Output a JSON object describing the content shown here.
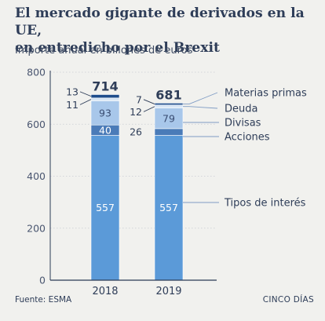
{
  "header": {
    "title_line1": "El mercado gigante de derivados en la UE,",
    "title_line2": "en entredicho por el Brexit",
    "subtitle": "Importe anual en billones de euros"
  },
  "footer": {
    "source": "Fuente: ESMA",
    "credit": "CINCO DÍAS"
  },
  "colors": {
    "background": "#f1f1ee",
    "tipos": "#5b9ad8",
    "acciones": "#4a7bb8",
    "divisas": "#a8c7ea",
    "deuda": "#d8e6f5",
    "materias": "#1e4d8c",
    "axis": "#2b3a55",
    "guide": "#7f9cc4"
  },
  "chart_data": {
    "type": "bar",
    "stacked": true,
    "categories": [
      "2018",
      "2019"
    ],
    "series": [
      {
        "name": "Tipos de interés",
        "values": [
          557,
          557
        ],
        "color_key": "tipos"
      },
      {
        "name": "Acciones",
        "values": [
          40,
          26
        ],
        "color_key": "acciones"
      },
      {
        "name": "Divisas",
        "values": [
          93,
          79
        ],
        "color_key": "divisas"
      },
      {
        "name": "Deuda",
        "values": [
          11,
          12
        ],
        "color_key": "deuda"
      },
      {
        "name": "Materias primas",
        "values": [
          13,
          7
        ],
        "color_key": "materias"
      }
    ],
    "totals": [
      714,
      681
    ],
    "ylim": [
      0,
      800
    ],
    "yticks": [
      0,
      200,
      400,
      600,
      800
    ],
    "legend_placement": "right"
  }
}
